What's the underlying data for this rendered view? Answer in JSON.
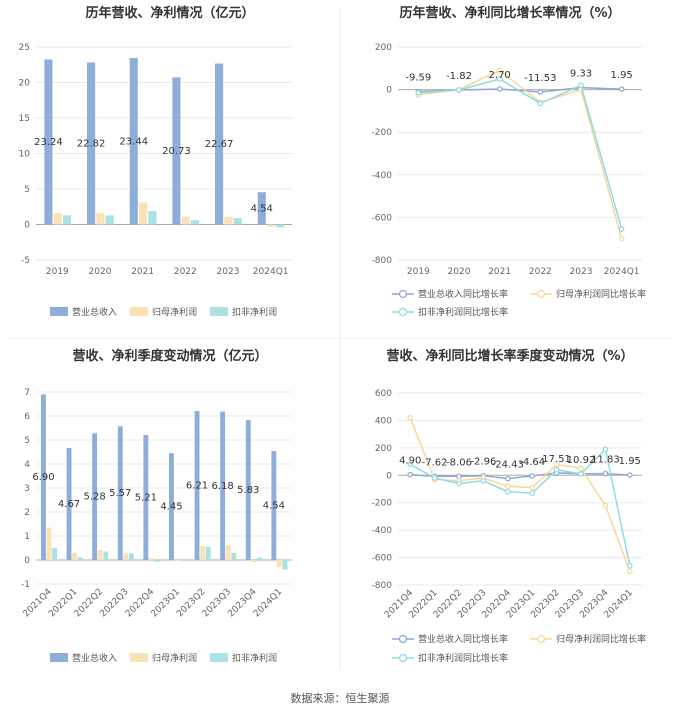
{
  "footer": "数据来源：恒生聚源",
  "colors": {
    "revenue": "#8eadd9",
    "net_profit": "#fbe1b6",
    "deducted_profit": "#a9e2e4",
    "revenue_line": "#8ea7d4",
    "net_profit_line": "#f6d79a",
    "deducted_line": "#8fdbe0",
    "grid": "#e8e8e8",
    "zero_line": "#aaaaaa",
    "text": "#333333",
    "axis_text": "#666666"
  },
  "chart_data": [
    {
      "type": "bar",
      "title": "历年营收、净利情况（亿元）",
      "categories": [
        "2019",
        "2020",
        "2021",
        "2022",
        "2023",
        "2024Q1"
      ],
      "ylim": [
        -5,
        25
      ],
      "yticks": [
        -5,
        0,
        5,
        10,
        15,
        20,
        25
      ],
      "series": [
        {
          "name": "营业总收入",
          "values": [
            23.24,
            22.82,
            23.44,
            20.73,
            22.67,
            4.54
          ],
          "labels": [
            "23.24",
            "22.82",
            "23.44",
            "20.73",
            "22.67",
            "4.54"
          ]
        },
        {
          "name": "归母净利润",
          "values": [
            1.6,
            1.6,
            3.1,
            1.1,
            1.1,
            -0.3
          ]
        },
        {
          "name": "扣非净利润",
          "values": [
            1.3,
            1.3,
            1.9,
            0.6,
            0.9,
            -0.4
          ]
        }
      ],
      "legend": "bottom"
    },
    {
      "type": "line",
      "title": "历年营收、净利同比增长率情况（%）",
      "categories": [
        "2019",
        "2020",
        "2021",
        "2022",
        "2023",
        "2024Q1"
      ],
      "ylim": [
        -800,
        200
      ],
      "yticks": [
        -800,
        -600,
        -400,
        -200,
        0,
        200
      ],
      "series": [
        {
          "name": "营业总收入同比增长率",
          "values": [
            -9.59,
            -1.82,
            2.7,
            -11.53,
            9.33,
            1.95
          ],
          "labels": [
            "-9.59",
            "-1.82",
            "2.70",
            "-11.53",
            "9.33",
            "1.95"
          ]
        },
        {
          "name": "归母净利润同比增长率",
          "values": [
            -25,
            0,
            90,
            -60,
            0,
            -700
          ]
        },
        {
          "name": "扣非净利润同比增长率",
          "values": [
            -15,
            -2,
            50,
            -65,
            20,
            -655
          ]
        }
      ],
      "legend": "bottom"
    },
    {
      "type": "bar",
      "title": "营收、净利季度变动情况（亿元）",
      "categories": [
        "2021Q4",
        "2022Q1",
        "2022Q2",
        "2022Q3",
        "2022Q4",
        "2023Q1",
        "2023Q2",
        "2023Q3",
        "2023Q4",
        "2024Q1"
      ],
      "ylim": [
        -1,
        7
      ],
      "yticks": [
        -1,
        0,
        1,
        2,
        3,
        4,
        5,
        6,
        7
      ],
      "series": [
        {
          "name": "营业总收入",
          "values": [
            6.9,
            4.67,
            5.28,
            5.57,
            5.21,
            4.45,
            6.21,
            6.18,
            5.83,
            4.54
          ],
          "labels": [
            "6.90",
            "4.67",
            "5.28",
            "5.57",
            "5.21",
            "4.45",
            "6.21",
            "6.18",
            "5.83",
            "4.54"
          ]
        },
        {
          "name": "归母净利润",
          "values": [
            1.35,
            0.3,
            0.42,
            0.3,
            0.08,
            -0.03,
            0.58,
            0.62,
            -0.1,
            -0.3
          ]
        },
        {
          "name": "扣非净利润",
          "values": [
            0.5,
            0.12,
            0.35,
            0.28,
            -0.08,
            -0.02,
            0.55,
            0.3,
            0.1,
            -0.4
          ]
        }
      ],
      "legend": "bottom"
    },
    {
      "type": "line",
      "title": "营收、净利同比增长率季度变动情况（%）",
      "categories": [
        "2021Q4",
        "2022Q1",
        "2022Q2",
        "2022Q3",
        "2022Q4",
        "2023Q1",
        "2023Q2",
        "2023Q3",
        "2023Q4",
        "2024Q1"
      ],
      "ylim": [
        -800,
        600
      ],
      "yticks": [
        -800,
        -600,
        -400,
        -200,
        0,
        200,
        400,
        600
      ],
      "series": [
        {
          "name": "营业总收入同比增长率",
          "values": [
            4.9,
            -7.62,
            -8.06,
            -2.96,
            -24.43,
            -4.64,
            17.51,
            10.92,
            11.83,
            1.95
          ],
          "labels": [
            "4.90",
            "-7.62",
            "-8.06",
            "-2.96",
            "-24.43",
            "-4.64",
            "17.51",
            "10.92",
            "11.83",
            "1.95"
          ]
        },
        {
          "name": "归母净利润同比增长率",
          "values": [
            420,
            -30,
            -40,
            -20,
            -80,
            -90,
            80,
            50,
            -220,
            -700
          ]
        },
        {
          "name": "扣非净利润同比增长率",
          "values": [
            80,
            -20,
            -60,
            -40,
            -120,
            -130,
            40,
            10,
            190,
            -660
          ]
        }
      ],
      "legend": "bottom"
    }
  ]
}
